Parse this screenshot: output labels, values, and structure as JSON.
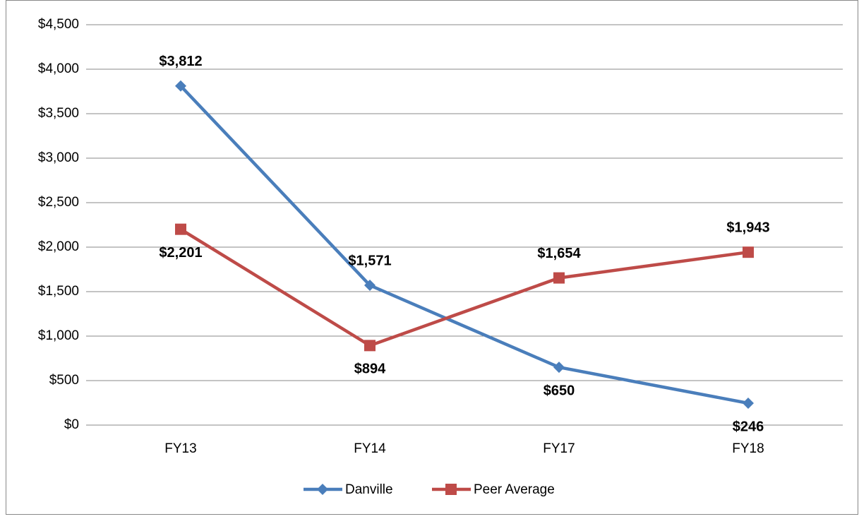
{
  "chart_data": {
    "type": "line",
    "categories": [
      "FY13",
      "FY14",
      "FY17",
      "FY18"
    ],
    "series": [
      {
        "name": "Danville",
        "color": "#4a7ebb",
        "marker": "diamond",
        "values": [
          3812,
          1571,
          650,
          246
        ],
        "value_labels": [
          "$3,812",
          "$1,571",
          "$650",
          "$246"
        ]
      },
      {
        "name": "Peer Average",
        "color": "#be4b48",
        "marker": "square",
        "values": [
          2201,
          894,
          1654,
          1943
        ],
        "value_labels": [
          "$2,201",
          "$894",
          "$1,654",
          "$1,943"
        ]
      }
    ],
    "ylim": [
      0,
      4500
    ],
    "yticks": [
      {
        "value": 0,
        "label": "$0"
      },
      {
        "value": 500,
        "label": "$500"
      },
      {
        "value": 1000,
        "label": "$1,000"
      },
      {
        "value": 1500,
        "label": "$1,500"
      },
      {
        "value": 2000,
        "label": "$2,000"
      },
      {
        "value": 2500,
        "label": "$2,500"
      },
      {
        "value": 3000,
        "label": "$3,000"
      },
      {
        "value": 3500,
        "label": "$3,500"
      },
      {
        "value": 4000,
        "label": "$4,000"
      },
      {
        "value": 4500,
        "label": "$4,500"
      }
    ],
    "grid": true,
    "legend": "bottom"
  }
}
